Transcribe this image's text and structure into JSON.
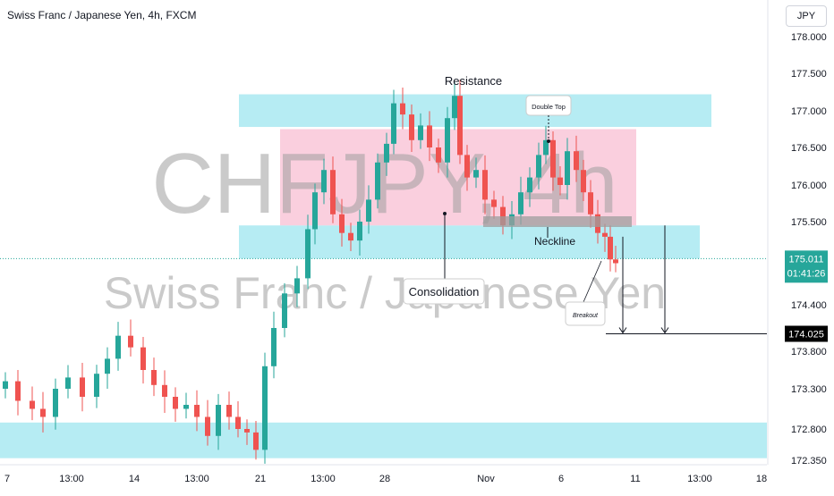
{
  "header": {
    "title": "Swiss Franc / Japanese Yen, 4h, FXCM",
    "currency": "JPY"
  },
  "watermark": {
    "symbol": "CHFJPY, 4h",
    "name": "Swiss Franc / Japanese Yen"
  },
  "annotations": {
    "resistance": "Resistance",
    "double_top": "Double Top",
    "neckline": "Neckline",
    "consolidation": "Consolidation",
    "breakout": "Breakout"
  },
  "price_labels": {
    "current_price": "175.011",
    "countdown": "01:41:26",
    "target_price": "174.025"
  },
  "colors": {
    "up": "#26a69a",
    "down": "#ef5350",
    "zone_cyan": "#b2ebf2",
    "zone_pink": "#f8bbd0",
    "neckline_gray": "#9e9e9e",
    "price_tag": "#26a69a",
    "target_tag": "#000000"
  },
  "chart_data": {
    "type": "candlestick",
    "symbol": "CHFJPY",
    "timeframe": "4h",
    "y_ticks": [
      "178.000",
      "177.500",
      "177.000",
      "176.500",
      "176.000",
      "175.500",
      "174.400",
      "173.800",
      "173.300",
      "172.800",
      "172.350"
    ],
    "x_ticks": [
      "7",
      "13:00",
      "14",
      "13:00",
      "21",
      "13:00",
      "28",
      "Nov",
      "6",
      "11",
      "13:00",
      "18"
    ],
    "zones": [
      {
        "name": "resistance-zone",
        "from": 176.78,
        "to": 177.22
      },
      {
        "name": "support-zone",
        "from": 175.01,
        "to": 175.45
      },
      {
        "name": "lower-support-zone",
        "from": 172.38,
        "to": 172.88
      },
      {
        "name": "consolidation-range",
        "from": 175.45,
        "to": 176.75
      }
    ],
    "neckline": 175.5,
    "target": 174.025,
    "last_price": 175.011
  }
}
